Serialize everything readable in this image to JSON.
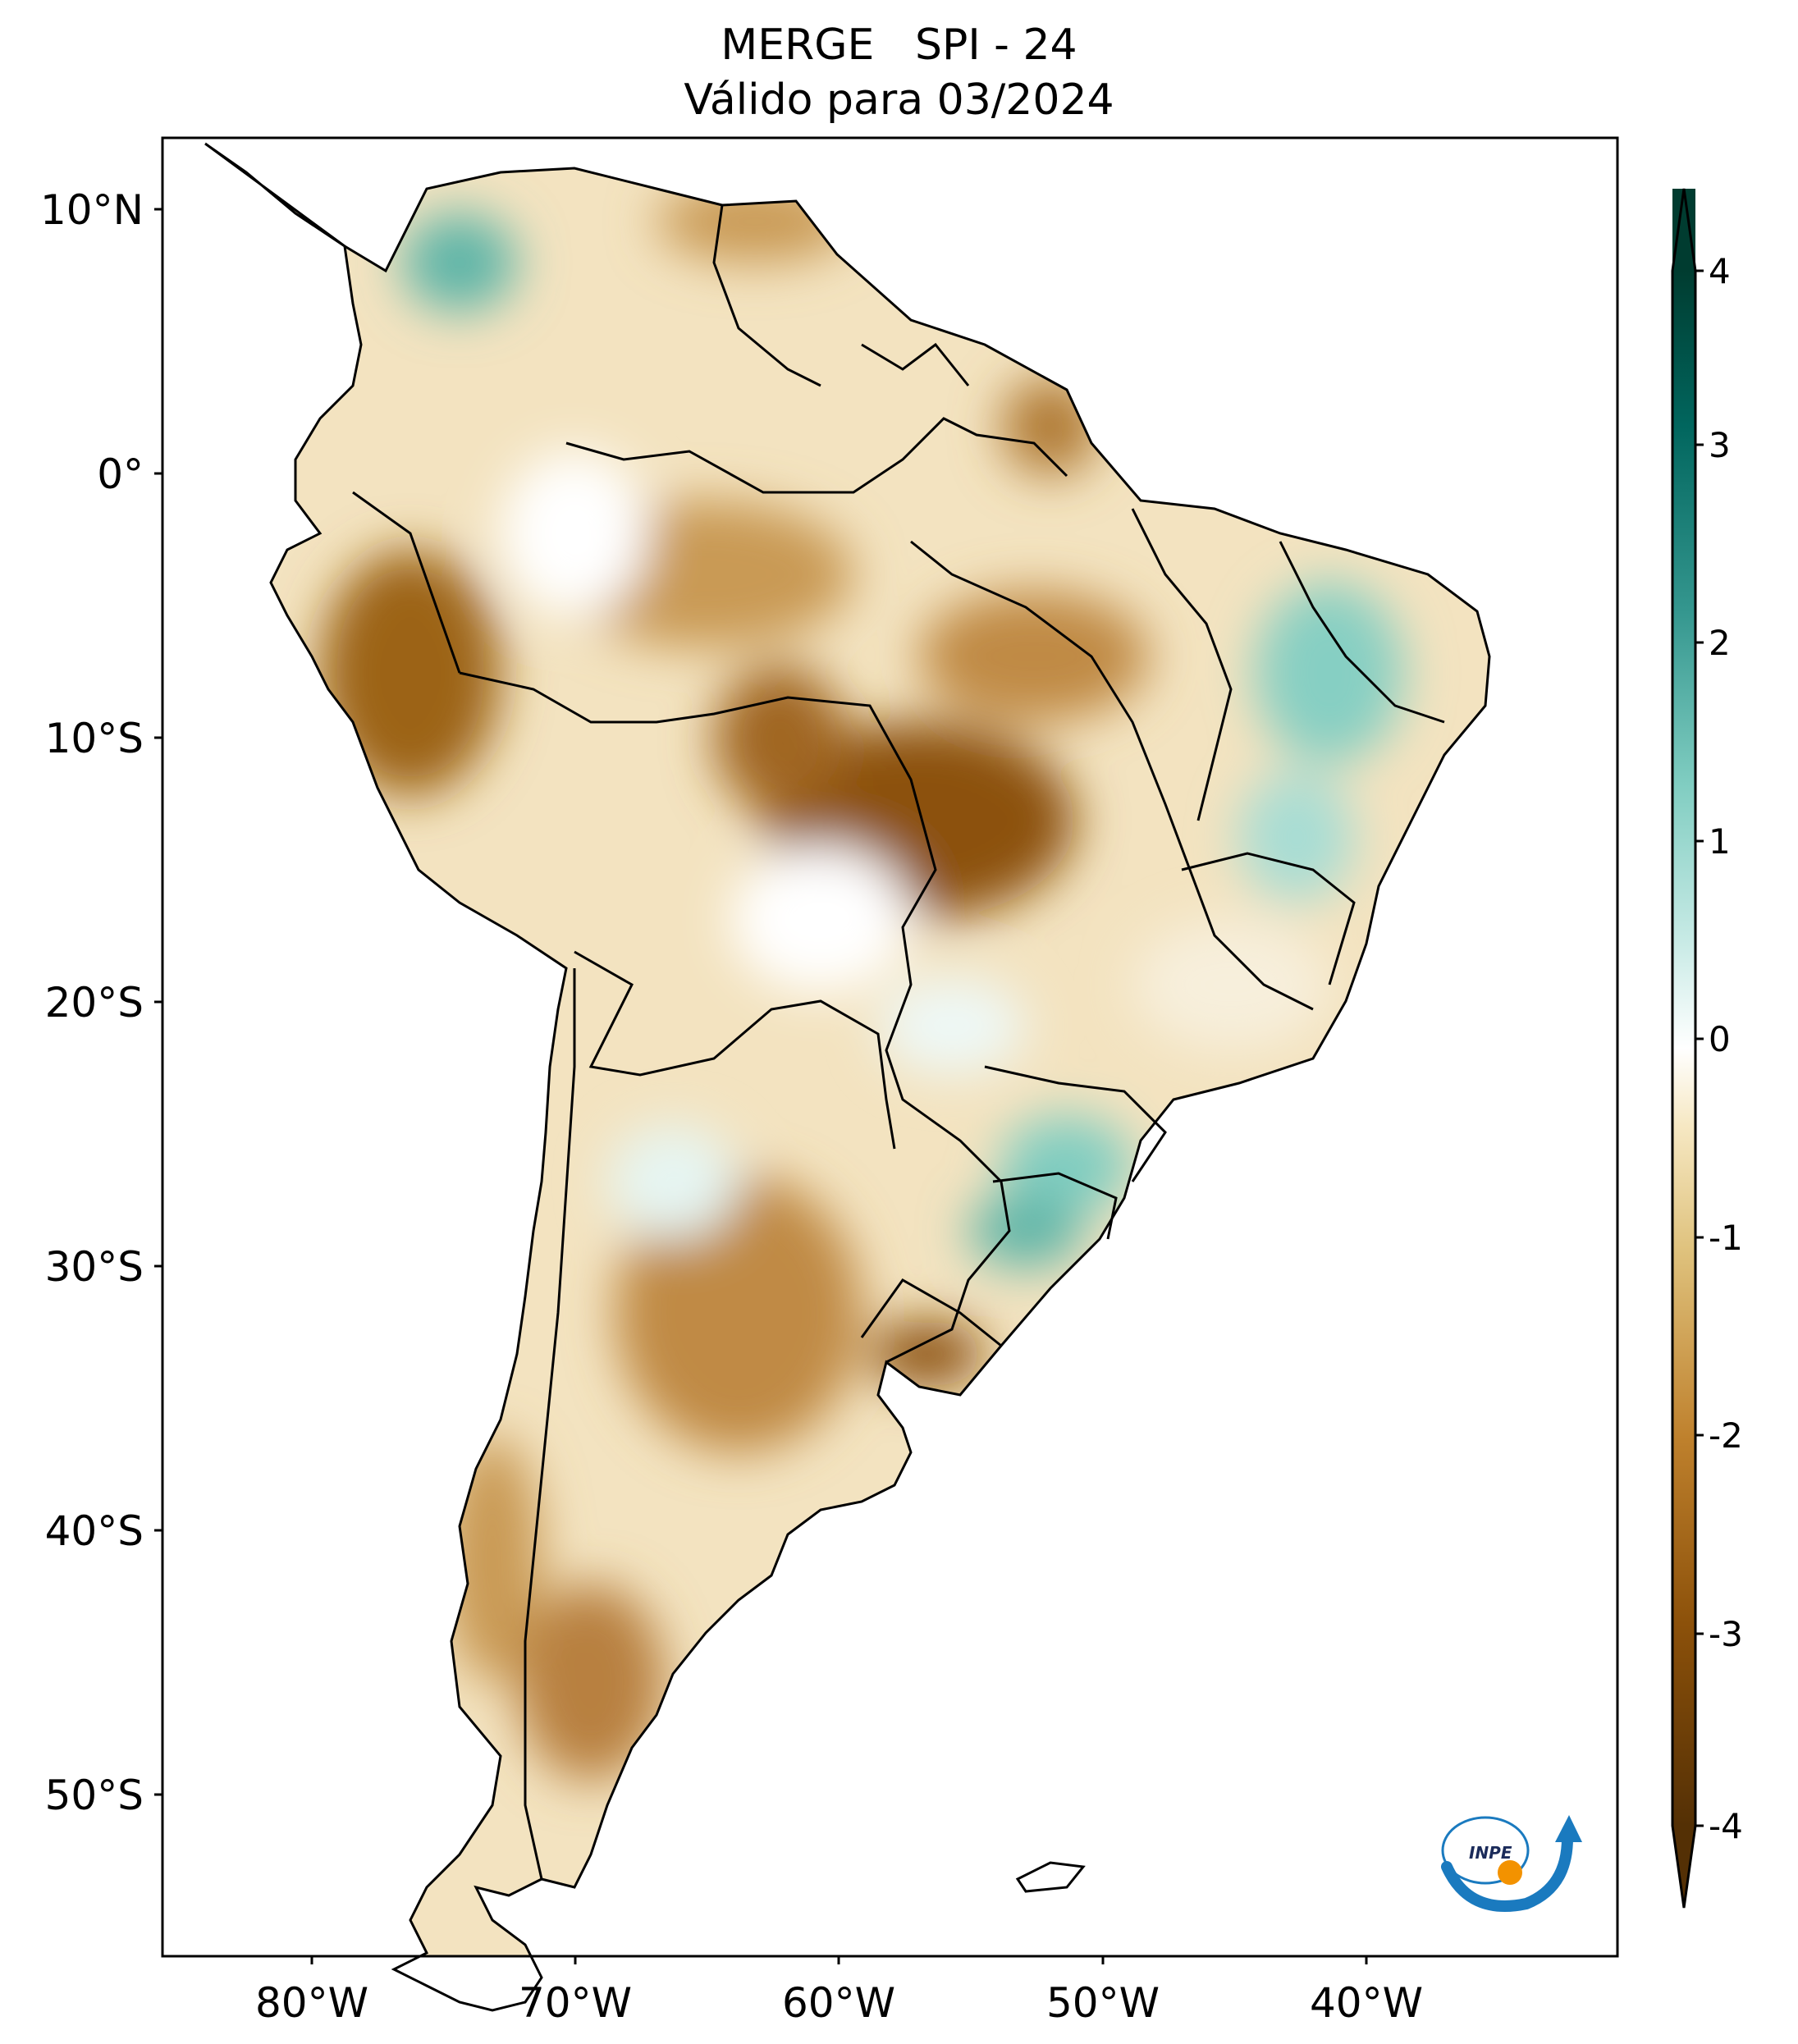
{
  "title": {
    "line1": "MERGE   SPI - 24",
    "line2": "Válido para 03/2024"
  },
  "map": {
    "lat_ticks": [
      "10°N",
      "0°",
      "10°S",
      "20°S",
      "30°S",
      "40°S",
      "50°S"
    ],
    "lon_ticks": [
      "80°W",
      "70°W",
      "60°W",
      "50°W",
      "40°W"
    ]
  },
  "colorbar": {
    "labels": [
      "4",
      "3",
      "2",
      "1",
      "0",
      "-1",
      "-2",
      "-3",
      "-4"
    ],
    "min": -4,
    "max": 4,
    "extend": "both",
    "colors": [
      "#543005",
      "#8c510a",
      "#bf812d",
      "#dfc27d",
      "#f6e8c3",
      "#ffffff",
      "#c7eae5",
      "#80cdc1",
      "#35978f",
      "#01665e",
      "#003c30"
    ]
  },
  "logo": {
    "text": "INPE",
    "arc_color": "#1a7abf",
    "dot_color": "#f39200"
  }
}
